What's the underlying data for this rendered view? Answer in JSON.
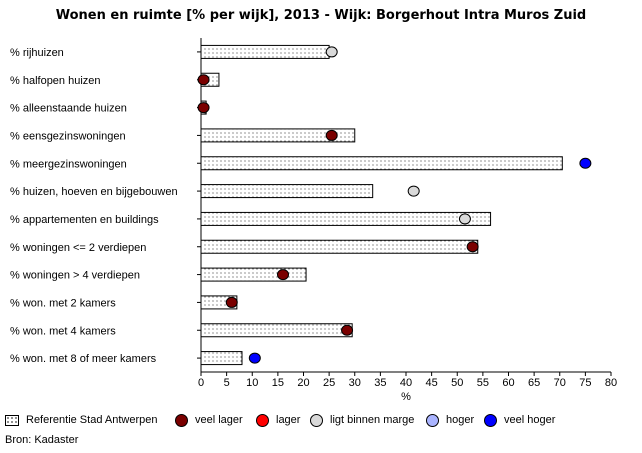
{
  "chart_data": {
    "type": "bar",
    "title": "Wonen en ruimte [% per wijk], 2013 - Wijk: Borgerhout Intra Muros Zuid",
    "xlabel": "%",
    "xlim": [
      0,
      80
    ],
    "xticks": [
      "0",
      "5",
      "10",
      "15",
      "20",
      "25",
      "30",
      "35",
      "40",
      "45",
      "50",
      "55",
      "60",
      "65",
      "70",
      "75",
      "80"
    ],
    "categories": [
      "% rijhuizen",
      "% halfopen huizen",
      "% alleenstaande huizen",
      "% eensgezinswoningen",
      "% meergezinswoningen",
      "% huizen, hoeven en bijgebouwen",
      "% appartementen en buildings",
      "% woningen <= 2 verdiepen",
      "% woningen > 4 verdiepen",
      "% won. met 2 kamers",
      "% won. met 4 kamers",
      "% won. met 8 of meer kamers"
    ],
    "series": [
      {
        "name": "Referentie  Stad Antwerpen",
        "values": [
          25,
          3.5,
          1,
          30,
          70.5,
          33.5,
          56.5,
          54,
          20.5,
          7,
          29.5,
          8
        ]
      },
      {
        "name": "Wijk",
        "values": [
          25.5,
          0.5,
          0.5,
          25.5,
          75,
          41.5,
          51.5,
          53,
          16,
          6,
          28.5,
          10.5
        ],
        "categories": [
          "ligt binnen marge",
          "veel lager",
          "veel lager",
          "veel lager",
          "veel hoger",
          "ligt binnen marge",
          "ligt binnen marge",
          "veel lager",
          "veel lager",
          "veel lager",
          "veel lager",
          "veel hoger"
        ]
      }
    ],
    "grid": false,
    "legend_position": "bottom"
  },
  "legend": [
    {
      "label": "Referentie  Stad Antwerpen",
      "kind": "swatch"
    },
    {
      "label": "veel lager",
      "color": "#7a0000"
    },
    {
      "label": "lager",
      "color": "#ff0000"
    },
    {
      "label": "ligt binnen marge",
      "color": "#d9d9d9"
    },
    {
      "label": "hoger",
      "color": "#aab4ff"
    },
    {
      "label": "veel hoger",
      "color": "#0000ff"
    }
  ],
  "colors": {
    "veel lager": "#7a0000",
    "lager": "#ff0000",
    "ligt binnen marge": "#d9d9d9",
    "hoger": "#aab4ff",
    "veel hoger": "#0000ff"
  },
  "source": "Bron: Kadaster"
}
